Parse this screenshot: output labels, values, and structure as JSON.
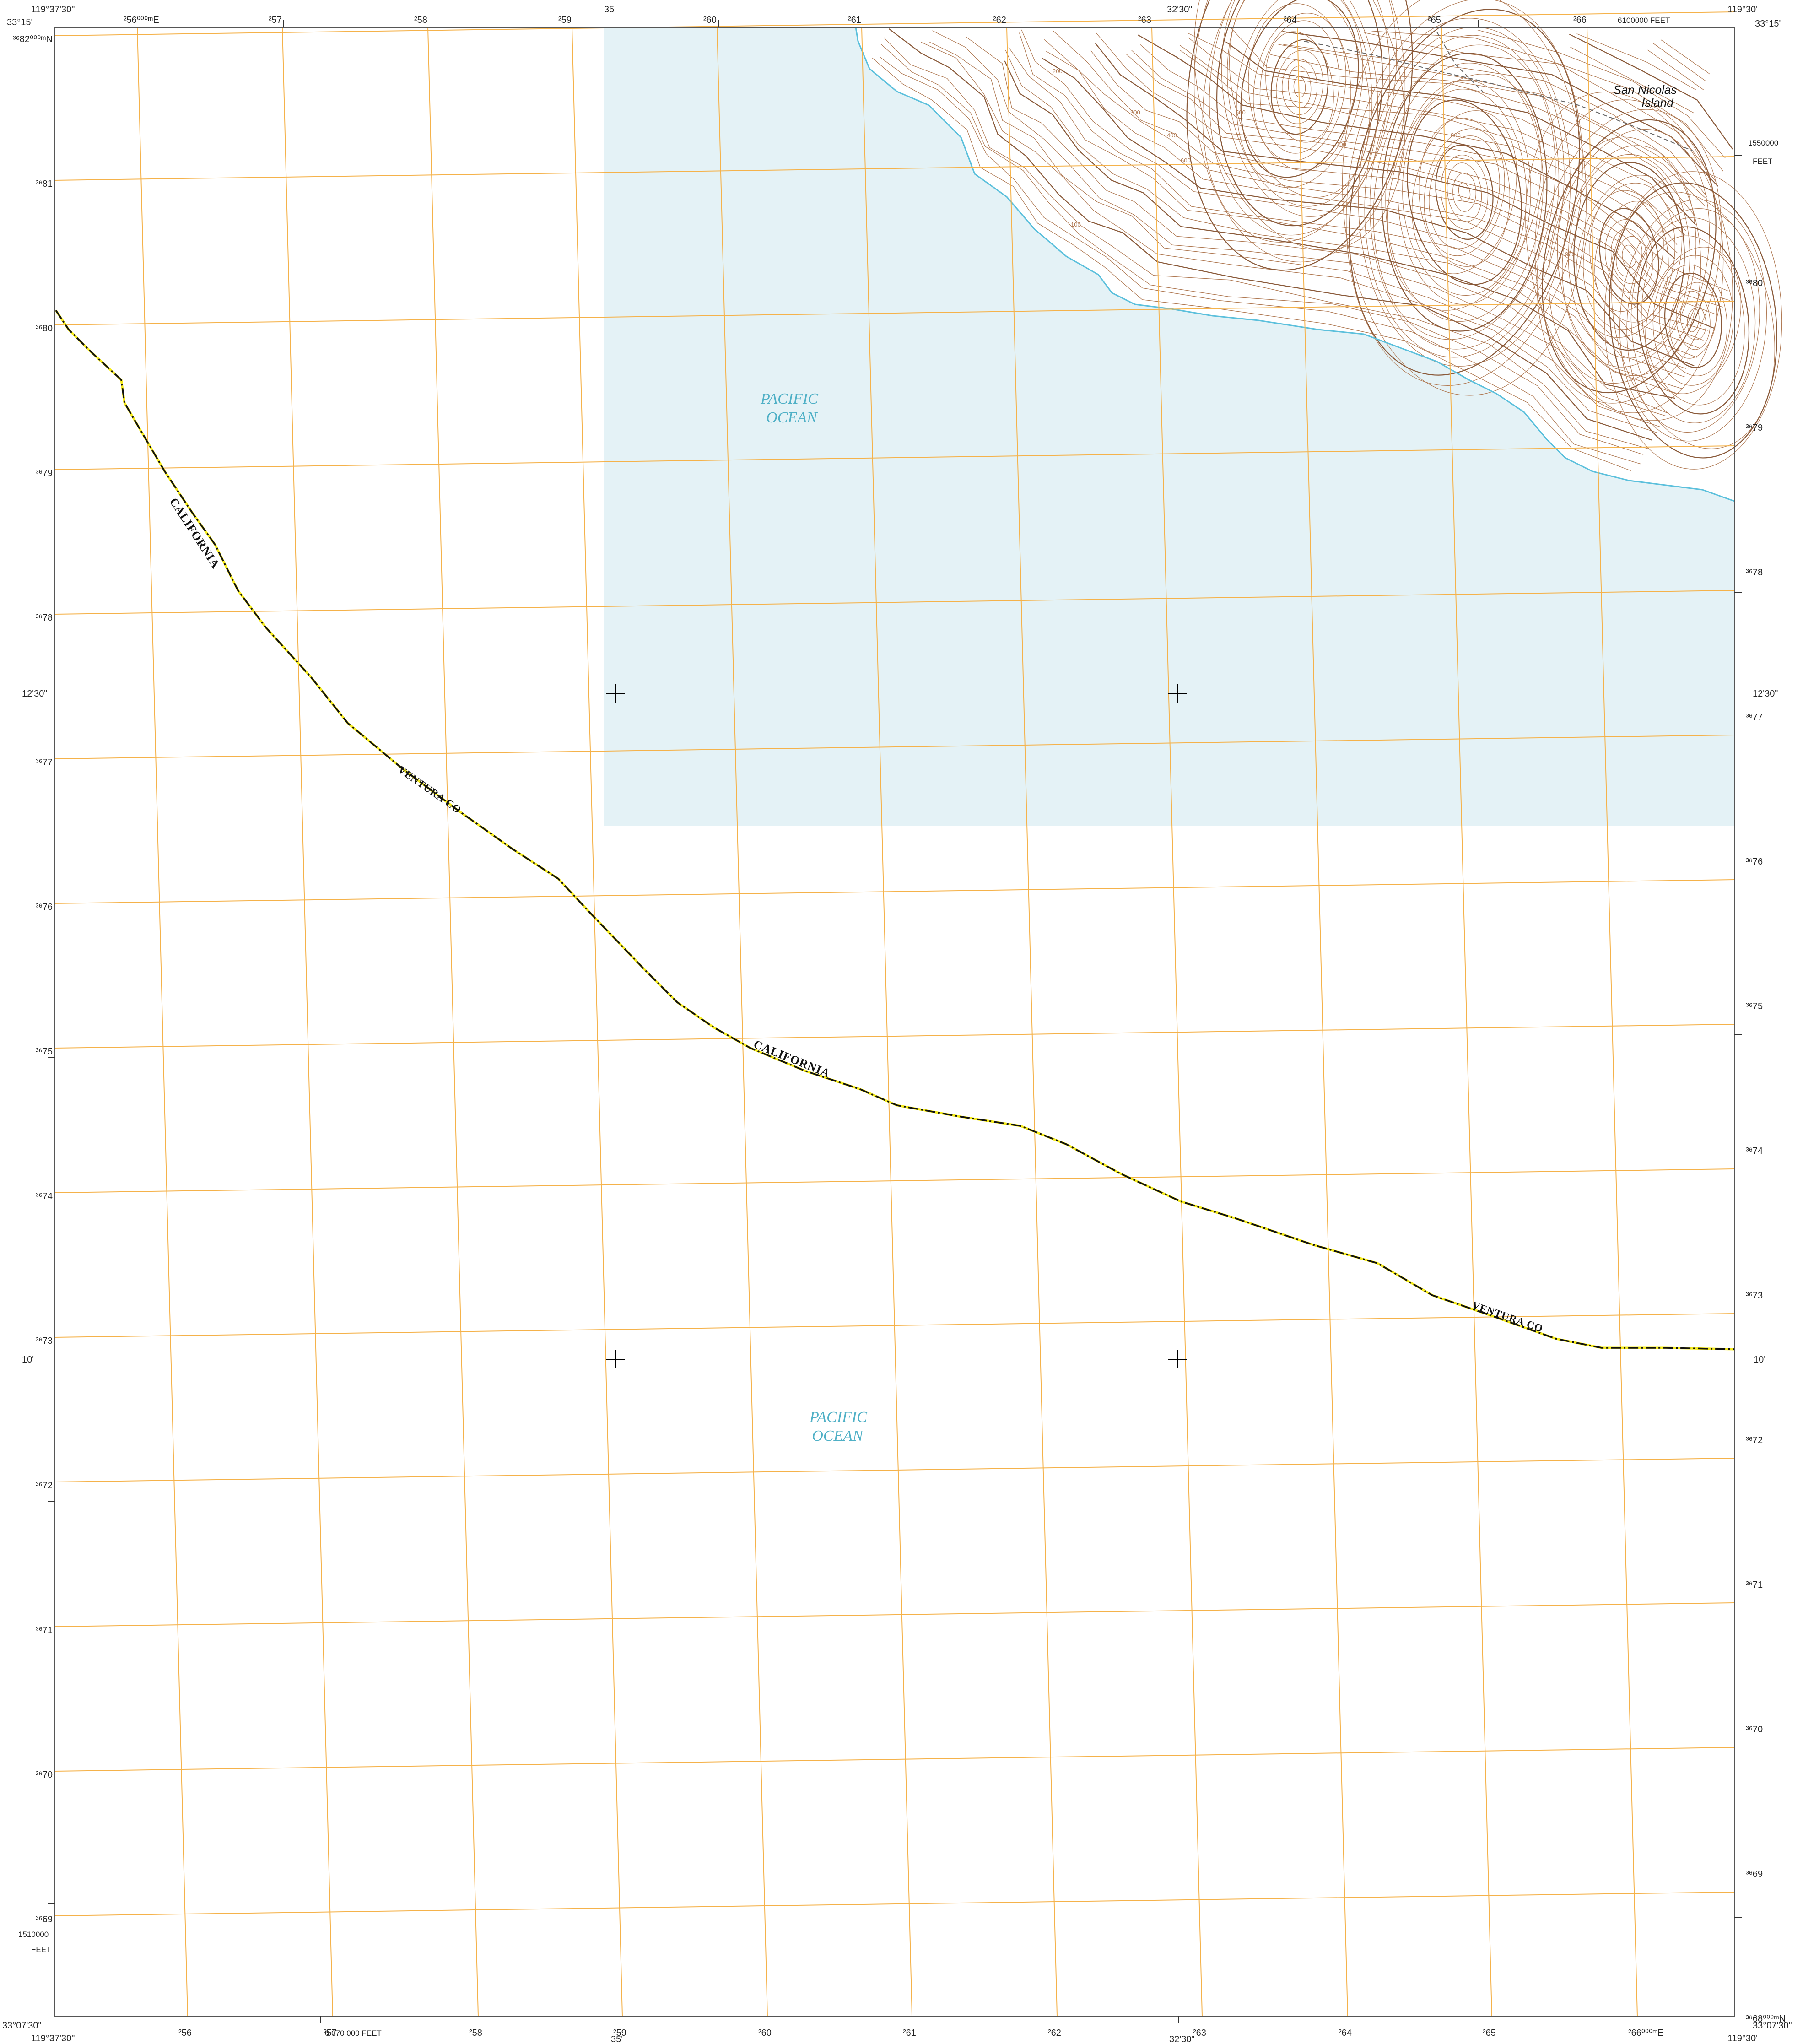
{
  "map": {
    "colors": {
      "grid": "#f5b24a",
      "water_fill": "#e4f2f6",
      "water_text": "#4fb0c6",
      "contour": "#b07a54",
      "contour_index": "#8a5a3a",
      "shoreline": "#5cc0dc",
      "boundary_dash": "#111111",
      "boundary_fill": "#f6ec1c",
      "neatline": "#555555"
    },
    "corners": {
      "top_left_lon": "119°37'30\"",
      "top_left_lat": "33°15'",
      "top_right_lon": "119°30'",
      "top_right_lat": "33°15'",
      "bottom_left_lon": "119°37'30\"",
      "bottom_left_lat": "33°07'30\"",
      "bottom_right_lon": "119°30'",
      "bottom_right_lat": "33°07'30\""
    },
    "top_easting_labels": [
      "²56⁰⁰⁰ᵐE",
      "²57",
      "²58",
      "²59",
      "²60",
      "²61",
      "²62",
      "²63",
      "²64",
      "²65",
      "²66"
    ],
    "bottom_easting_labels": [
      "²56",
      "²57",
      "²58",
      "²59",
      "²60",
      "²61",
      "²62",
      "²63",
      "²64",
      "²65",
      "²66⁰⁰⁰ᵐE"
    ],
    "left_northing_labels": [
      "³⁶82⁰⁰⁰ᵐN",
      "³⁶81",
      "³⁶80",
      "³⁶79",
      "³⁶78",
      "³⁶77",
      "³⁶76",
      "³⁶75",
      "³⁶74",
      "³⁶73",
      "³⁶72",
      "³⁶71",
      "³⁶70",
      "³⁶69"
    ],
    "right_northing_labels": [
      "³⁶80",
      "³⁶79",
      "³⁶78",
      "³⁶77",
      "³⁶76",
      "³⁶75",
      "³⁶74",
      "³⁶73",
      "³⁶72",
      "³⁶71",
      "³⁶70",
      "³⁶69",
      "³⁶68⁰⁰⁰ᵐN"
    ],
    "minute_labels": {
      "top_35": "35'",
      "top_3230": "32'30\"",
      "bottom_35": "35'",
      "bottom_3230": "32'30\"",
      "left_1230": "12'30\"",
      "right_1230": "12'30\"",
      "left_10": "10'",
      "right_10": "10'"
    },
    "state_plane": {
      "top_feet": "6100000 FEET",
      "right_value": "1550000",
      "right_unit": "FEET",
      "left_value": "1510000",
      "left_unit": "FEET",
      "bottom_feet": "6 070 000 FEET"
    },
    "water_labels": [
      {
        "line1": "PACIFIC",
        "line2": "OCEAN"
      },
      {
        "line1": "PACIFIC",
        "line2": "OCEAN"
      }
    ],
    "place_label": {
      "line1": "San Nicolas",
      "line2": "Island"
    },
    "boundary_labels": [
      "CALIFORNIA",
      "VENTURA CO",
      "CALIFORNIA",
      "VENTURA CO"
    ],
    "contour_labels": [
      "100",
      "200",
      "300",
      "400",
      "500",
      "600",
      "700",
      "800",
      "900"
    ]
  }
}
